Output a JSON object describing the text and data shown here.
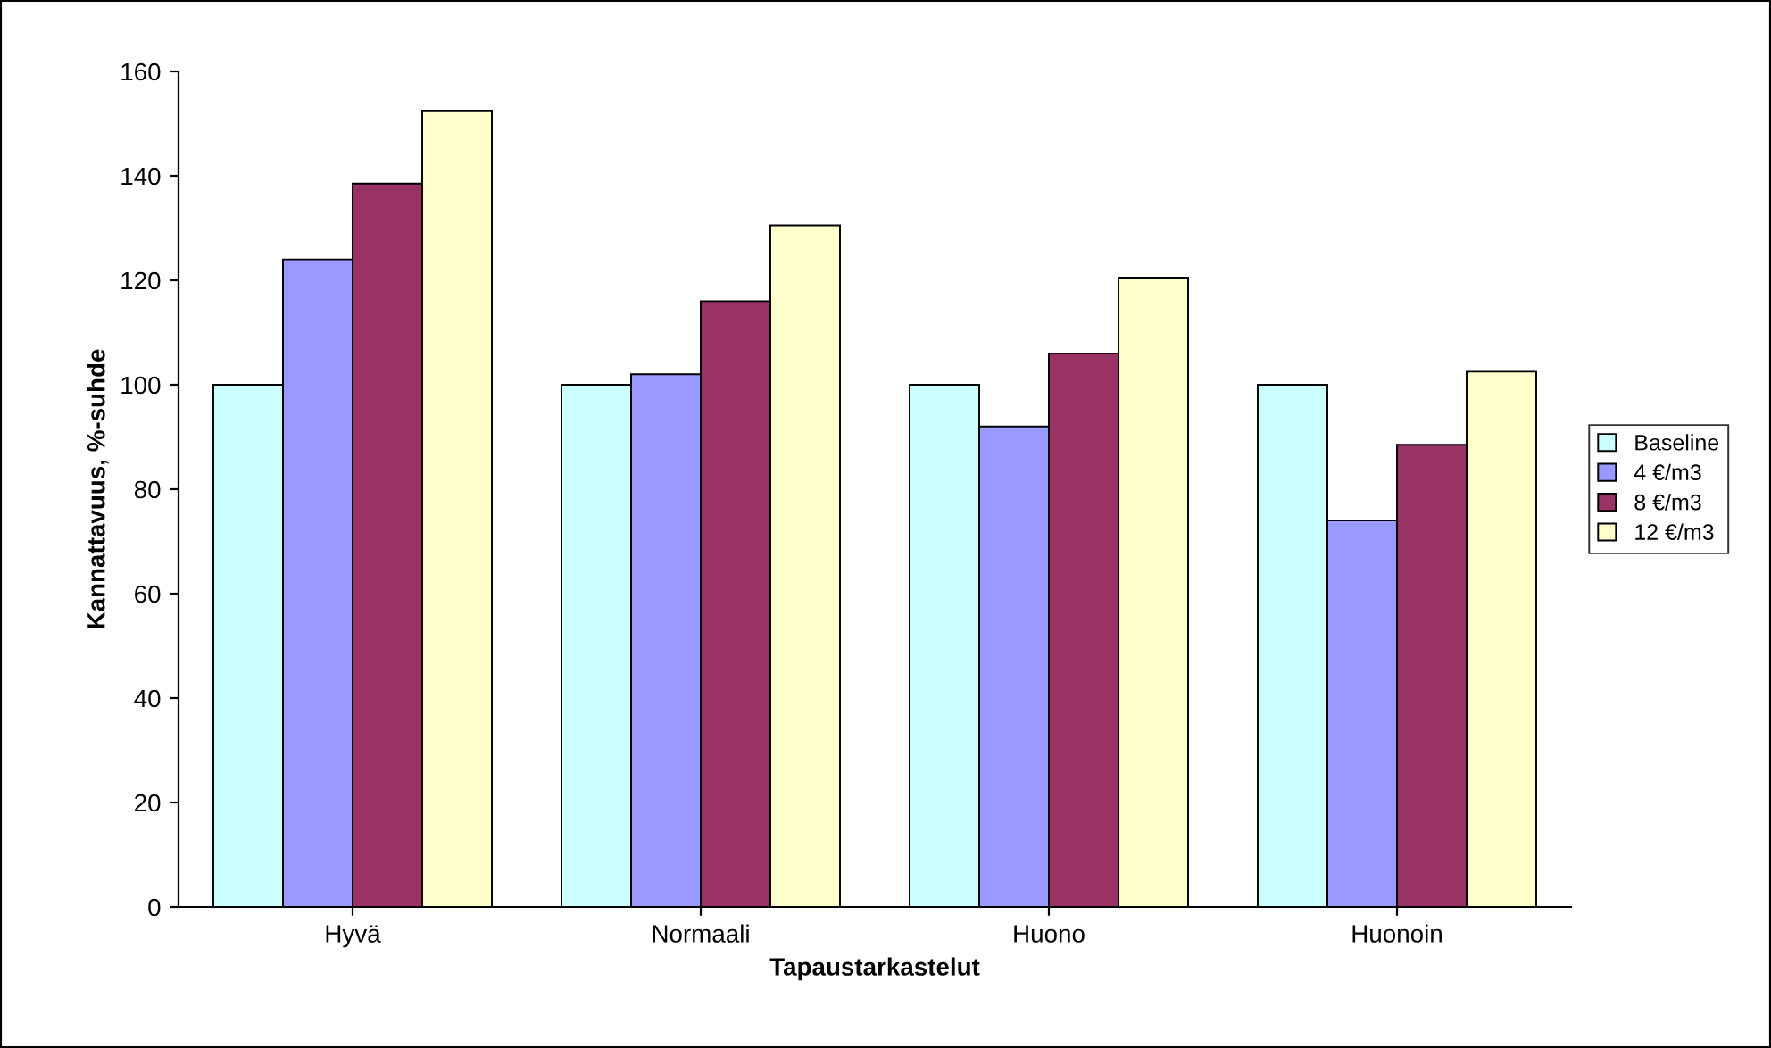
{
  "chart_data": {
    "type": "bar",
    "xlabel": "Tapaustarkastelut",
    "ylabel": "Kannattavuus, %-suhde",
    "categories": [
      "Hyvä",
      "Normaali",
      "Huono",
      "Huonoin"
    ],
    "series": [
      {
        "name": "Baseline",
        "color": "#ccffff",
        "values": [
          100,
          100,
          100,
          100
        ]
      },
      {
        "name": "4 €/m3",
        "color": "#9999ff",
        "values": [
          124,
          102,
          92,
          74
        ]
      },
      {
        "name": "8 €/m3",
        "color": "#993366",
        "values": [
          138.5,
          116,
          106,
          88.5
        ]
      },
      {
        "name": "12 €/m3",
        "color": "#ffffcc",
        "values": [
          152.5,
          130.5,
          120.5,
          102.5
        ]
      }
    ],
    "ylim": [
      0,
      160
    ],
    "yticks": [
      0,
      20,
      40,
      60,
      80,
      100,
      120,
      140,
      160
    ],
    "grid": false,
    "legend": "right"
  }
}
